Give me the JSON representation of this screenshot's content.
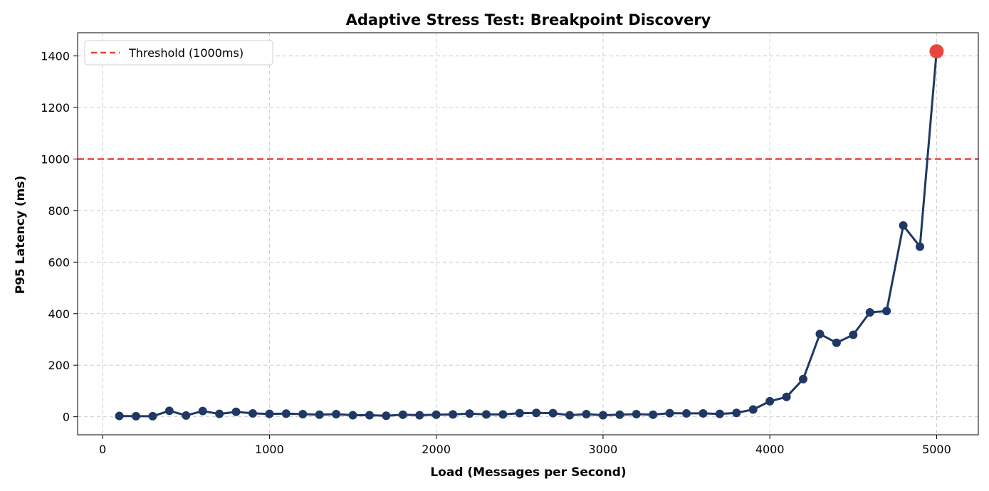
{
  "chart_data": {
    "type": "line",
    "title": "Adaptive Stress Test: Breakpoint Discovery",
    "xlabel": "Load (Messages per Second)",
    "ylabel": "P95 Latency (ms)",
    "xlim": [
      -150,
      5250
    ],
    "ylim": [
      -70,
      1490
    ],
    "xticks": [
      0,
      1000,
      2000,
      3000,
      4000,
      5000
    ],
    "yticks": [
      0,
      200,
      400,
      600,
      800,
      1000,
      1200,
      1400
    ],
    "grid": true,
    "legend_position": "top-left",
    "series": [
      {
        "color": "#1f3864",
        "x": [
          100,
          200,
          300,
          400,
          500,
          600,
          700,
          800,
          900,
          1000,
          1100,
          1200,
          1300,
          1400,
          1500,
          1600,
          1700,
          1800,
          1900,
          2000,
          2100,
          2200,
          2300,
          2400,
          2500,
          2600,
          2700,
          2800,
          2900,
          3000,
          3100,
          3200,
          3300,
          3400,
          3500,
          3600,
          3700,
          3800,
          3900,
          4000,
          4100,
          4200,
          4300,
          4400,
          4500,
          4600,
          4700,
          4800,
          4900,
          5000
        ],
        "y": [
          3,
          2,
          2,
          23,
          5,
          22,
          11,
          19,
          13,
          11,
          12,
          10,
          8,
          10,
          6,
          6,
          4,
          8,
          6,
          8,
          9,
          12,
          9,
          9,
          14,
          15,
          14,
          6,
          10,
          6,
          8,
          10,
          8,
          14,
          13,
          13,
          11,
          15,
          28,
          60,
          77,
          146,
          321,
          287,
          318,
          405,
          410,
          742,
          660,
          1418
        ]
      }
    ],
    "threshold": {
      "label": "Threshold (1000ms)",
      "y": 1000,
      "color": "#e8453c"
    },
    "breakpoint": {
      "x": 5000,
      "y": 1418,
      "color": "#e8453c"
    }
  }
}
